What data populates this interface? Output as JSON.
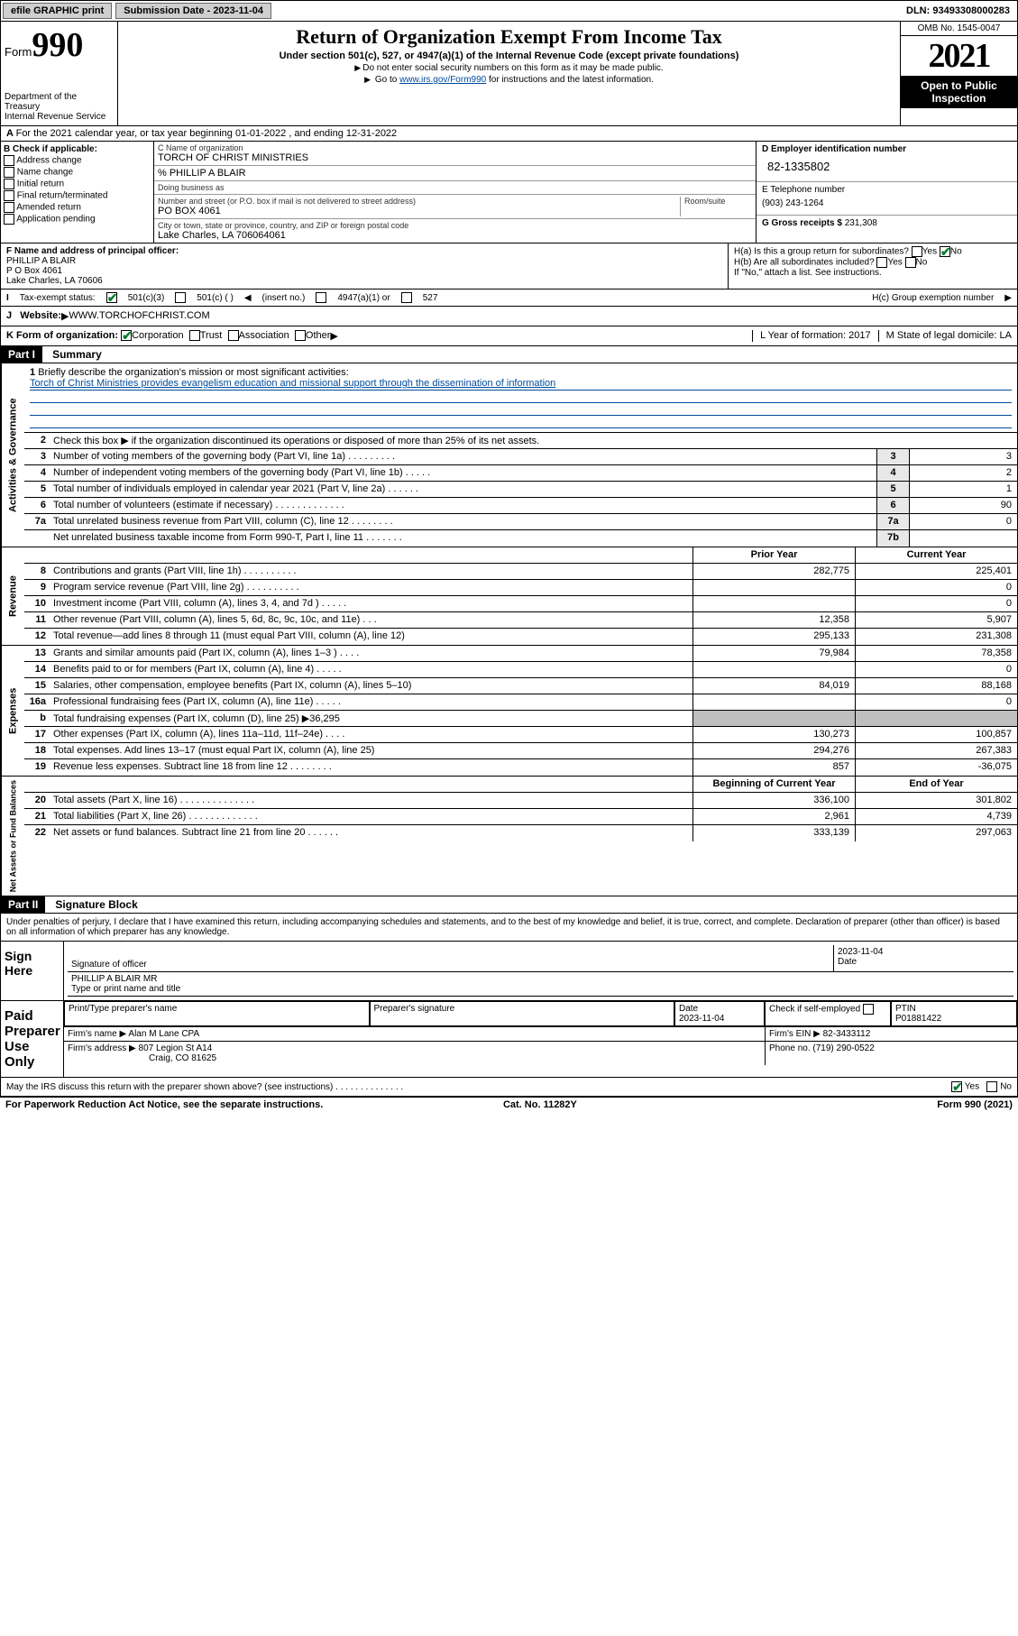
{
  "top": {
    "efile": "efile GRAPHIC print",
    "sub_label": "Submission Date - 2023-11-04",
    "dln": "DLN: 93493308000283"
  },
  "header": {
    "form_label": "Form",
    "form_num": "990",
    "dept": "Department of the Treasury",
    "irs": "Internal Revenue Service",
    "title": "Return of Organization Exempt From Income Tax",
    "sub": "Under section 501(c), 527, or 4947(a)(1) of the Internal Revenue Code (except private foundations)",
    "note1": "Do not enter social security numbers on this form as it may be made public.",
    "note2_pre": "Go to ",
    "note2_link": "www.irs.gov/Form990",
    "note2_post": " for instructions and the latest information.",
    "omb": "OMB No. 1545-0047",
    "year": "2021",
    "open": "Open to Public Inspection"
  },
  "lineA": "For the 2021 calendar year, or tax year beginning 01-01-2022      , and ending 12-31-2022",
  "B": {
    "hdr": "B Check if applicable:",
    "items": [
      "Address change",
      "Name change",
      "Initial return",
      "Final return/terminated",
      "Amended return",
      "Application pending"
    ]
  },
  "C": {
    "name_lbl": "C Name of organization",
    "name": "TORCH OF CHRIST MINISTRIES",
    "care_lbl": "% PHILLIP A BLAIR",
    "dba_lbl": "Doing business as",
    "addr_lbl": "Number and street (or P.O. box if mail is not delivered to street address)",
    "room_lbl": "Room/suite",
    "addr": "PO BOX 4061",
    "city_lbl": "City or town, state or province, country, and ZIP or foreign postal code",
    "city": "Lake Charles, LA   706064061"
  },
  "D": {
    "lbl": "D Employer identification number",
    "ein": "82-1335802",
    "e_lbl": "E Telephone number",
    "phone": "(903) 243-1264",
    "g_lbl": "G Gross receipts $",
    "gross": "231,308"
  },
  "F": {
    "lbl": "F Name and address of principal officer:",
    "name": "PHILLIP A BLAIR",
    "addr1": "P O Box 4061",
    "addr2": "Lake Charles, LA   70606"
  },
  "H": {
    "a": "H(a)  Is this a group return for subordinates?",
    "b": "H(b)  Are all subordinates included?",
    "b_note": "If \"No,\" attach a list. See instructions.",
    "c": "H(c)  Group exemption number",
    "yes": "Yes",
    "no": "No"
  },
  "I": {
    "lbl": "Tax-exempt status:",
    "c3": "501(c)(3)",
    "c": "501(c) (  )",
    "ins": "(insert no.)",
    "a1": "4947(a)(1) or",
    "527": "527"
  },
  "J": {
    "lbl": "Website:",
    "val": "WWW.TORCHOFCHRIST.COM"
  },
  "K": {
    "lbl": "K Form of organization:",
    "opts": [
      "Corporation",
      "Trust",
      "Association",
      "Other"
    ],
    "L": "L Year of formation: 2017",
    "M": "M State of legal domicile: LA"
  },
  "part1": {
    "hdr": "Part I",
    "title": "Summary"
  },
  "summary": {
    "l1": "Briefly describe the organization's mission or most significant activities:",
    "mission": "Torch of Christ Ministries provides evangelism education and missional support through the dissemination of information",
    "l2": "Check this box ▶        if the organization discontinued its operations or disposed of more than 25% of its net assets.",
    "rows": [
      {
        "n": "3",
        "d": "Number of voting members of the governing body (Part VI, line 1a)  .   .   .   .   .   .   .   .   .",
        "box": "3",
        "v": "3"
      },
      {
        "n": "4",
        "d": "Number of independent voting members of the governing body (Part VI, line 1b)  .   .   .   .   .",
        "box": "4",
        "v": "2"
      },
      {
        "n": "5",
        "d": "Total number of individuals employed in calendar year 2021 (Part V, line 2a)  .   .   .   .   .   .",
        "box": "5",
        "v": "1"
      },
      {
        "n": "6",
        "d": "Total number of volunteers (estimate if necessary)   .   .   .   .   .   .   .   .   .   .   .   .   .",
        "box": "6",
        "v": "90"
      },
      {
        "n": "7a",
        "d": "Total unrelated business revenue from Part VIII, column (C), line 12  .   .   .   .   .   .   .   .",
        "box": "7a",
        "v": "0"
      },
      {
        "n": "",
        "d": "Net unrelated business taxable income from Form 990-T, Part I, line 11  .   .   .   .   .   .   .",
        "box": "7b",
        "v": ""
      }
    ],
    "col_prior": "Prior Year",
    "col_curr": "Current Year",
    "rev": [
      {
        "n": "8",
        "d": "Contributions and grants (Part VIII, line 1h)   .   .   .   .   .   .   .   .   .   .",
        "p": "282,775",
        "c": "225,401"
      },
      {
        "n": "9",
        "d": "Program service revenue (Part VIII, line 2g)   .   .   .   .   .   .   .   .   .   .",
        "p": "",
        "c": "0"
      },
      {
        "n": "10",
        "d": "Investment income (Part VIII, column (A), lines 3, 4, and 7d )   .   .   .   .   .",
        "p": "",
        "c": "0"
      },
      {
        "n": "11",
        "d": "Other revenue (Part VIII, column (A), lines 5, 6d, 8c, 9c, 10c, and 11e)    .   .   .",
        "p": "12,358",
        "c": "5,907"
      },
      {
        "n": "12",
        "d": "Total revenue—add lines 8 through 11 (must equal Part VIII, column (A), line 12)",
        "p": "295,133",
        "c": "231,308"
      }
    ],
    "exp": [
      {
        "n": "13",
        "d": "Grants and similar amounts paid (Part IX, column (A), lines 1–3 )   .   .   .   .",
        "p": "79,984",
        "c": "78,358"
      },
      {
        "n": "14",
        "d": "Benefits paid to or for members (Part IX, column (A), line 4)    .   .   .   .   .",
        "p": "",
        "c": "0"
      },
      {
        "n": "15",
        "d": "Salaries, other compensation, employee benefits (Part IX, column (A), lines 5–10)",
        "p": "84,019",
        "c": "88,168"
      },
      {
        "n": "16a",
        "d": "Professional fundraising fees (Part IX, column (A), line 11e)  .   .   .   .   .",
        "p": "",
        "c": "0"
      },
      {
        "n": "b",
        "d": "Total fundraising expenses (Part IX, column (D), line 25) ▶36,295",
        "p": "shade",
        "c": "shade"
      },
      {
        "n": "17",
        "d": "Other expenses (Part IX, column (A), lines 11a–11d, 11f–24e)   .   .   .   .",
        "p": "130,273",
        "c": "100,857"
      },
      {
        "n": "18",
        "d": "Total expenses. Add lines 13–17 (must equal Part IX, column (A), line 25)",
        "p": "294,276",
        "c": "267,383"
      },
      {
        "n": "19",
        "d": "Revenue less expenses. Subtract line 18 from line 12  .   .   .   .   .   .   .   .",
        "p": "857",
        "c": "-36,075"
      }
    ],
    "col_beg": "Beginning of Current Year",
    "col_end": "End of Year",
    "net": [
      {
        "n": "20",
        "d": "Total assets (Part X, line 16)   .   .   .   .   .   .   .   .   .   .   .   .   .   .",
        "p": "336,100",
        "c": "301,802"
      },
      {
        "n": "21",
        "d": "Total liabilities (Part X, line 26)   .   .   .   .   .   .   .   .   .   .   .   .   .",
        "p": "2,961",
        "c": "4,739"
      },
      {
        "n": "22",
        "d": "Net assets or fund balances. Subtract line 21 from line 20  .   .   .   .   .   .",
        "p": "333,139",
        "c": "297,063"
      }
    ]
  },
  "side": {
    "act": "Activities & Governance",
    "rev": "Revenue",
    "exp": "Expenses",
    "net": "Net Assets or Fund Balances"
  },
  "part2": {
    "hdr": "Part II",
    "title": "Signature Block"
  },
  "sig": {
    "decl": "Under penalties of perjury, I declare that I have examined this return, including accompanying schedules and statements, and to the best of my knowledge and belief, it is true, correct, and complete. Declaration of preparer (other than officer) is based on all information of which preparer has any knowledge.",
    "sign_here": "Sign Here",
    "sig_of": "Signature of officer",
    "date": "Date",
    "sig_date": "2023-11-04",
    "name": "PHILLIP A BLAIR  MR",
    "type_lbl": "Type or print name and title",
    "paid": "Paid Preparer Use Only",
    "p_name_lbl": "Print/Type preparer's name",
    "p_sig_lbl": "Preparer's signature",
    "p_date_lbl": "Date",
    "p_date": "2023-11-04",
    "p_check": "Check          if self-employed",
    "ptin_lbl": "PTIN",
    "ptin": "P01881422",
    "firm_name_lbl": "Firm's name      ▶",
    "firm_name": "Alan M Lane CPA",
    "firm_ein_lbl": "Firm's EIN ▶",
    "firm_ein": "82-3433112",
    "firm_addr_lbl": "Firm's address ▶",
    "firm_addr1": "807 Legion St A14",
    "firm_addr2": "Craig, CO   81625",
    "phone_lbl": "Phone no.",
    "phone": "(719) 290-0522",
    "may": "May the IRS discuss this return with the preparer shown above? (see instructions)    .   .   .   .   .   .   .   .   .   .   .   .   .   .",
    "yes": "Yes",
    "no": "No"
  },
  "footer": {
    "l": "For Paperwork Reduction Act Notice, see the separate instructions.",
    "m": "Cat. No. 11282Y",
    "r": "Form 990 (2021)"
  }
}
